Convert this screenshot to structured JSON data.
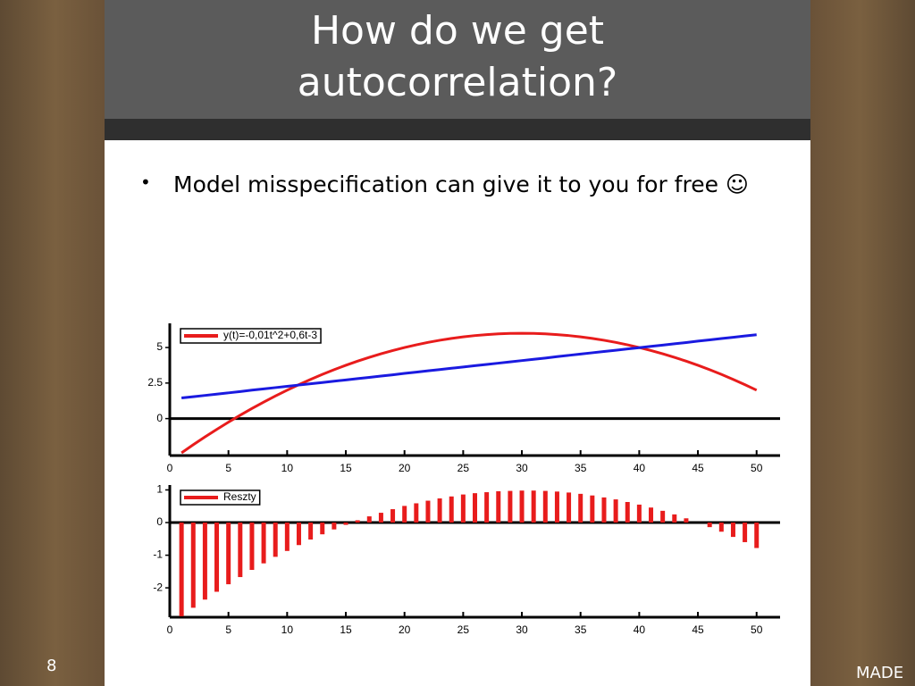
{
  "slide": {
    "title": "How do we get autocorrelation?",
    "bullet": "Model misspecification can give it to you for free ☺",
    "page_number": "8",
    "footer": "MADE"
  },
  "chart_data": [
    {
      "type": "line",
      "x": [
        1,
        2,
        3,
        4,
        5,
        6,
        7,
        8,
        9,
        10,
        11,
        12,
        13,
        14,
        15,
        16,
        17,
        18,
        19,
        20,
        21,
        22,
        23,
        24,
        25,
        26,
        27,
        28,
        29,
        30,
        31,
        32,
        33,
        34,
        35,
        36,
        37,
        38,
        39,
        40,
        41,
        42,
        43,
        44,
        45,
        46,
        47,
        48,
        49,
        50
      ],
      "series": [
        {
          "name": "y(t)=-0,01t^2+0,6t-3",
          "color": "#e81c1c",
          "values": [
            -2.41,
            -1.84,
            -1.29,
            -0.76,
            -0.25,
            0.24,
            0.71,
            1.16,
            1.59,
            2.0,
            2.39,
            2.76,
            3.11,
            3.44,
            3.75,
            4.04,
            4.31,
            4.56,
            4.79,
            5.0,
            5.19,
            5.36,
            5.51,
            5.64,
            5.75,
            5.84,
            5.91,
            5.96,
            5.99,
            6.0,
            5.99,
            5.96,
            5.91,
            5.84,
            5.75,
            5.64,
            5.51,
            5.36,
            5.19,
            5.0,
            4.79,
            4.56,
            4.31,
            4.04,
            3.75,
            3.44,
            3.11,
            2.76,
            2.39,
            2.0
          ]
        },
        {
          "color": "#1a1ae0",
          "values": [
            1.45,
            1.54,
            1.63,
            1.72,
            1.81,
            1.9,
            2.0,
            2.09,
            2.18,
            2.27,
            2.36,
            2.45,
            2.54,
            2.63,
            2.72,
            2.81,
            2.9,
            2.99,
            3.08,
            3.18,
            3.27,
            3.36,
            3.45,
            3.54,
            3.63,
            3.72,
            3.81,
            3.9,
            3.99,
            4.08,
            4.17,
            4.26,
            4.36,
            4.45,
            4.54,
            4.63,
            4.72,
            4.81,
            4.9,
            4.99,
            5.08,
            5.17,
            5.26,
            5.35,
            5.45,
            5.54,
            5.63,
            5.72,
            5.81,
            5.9
          ]
        }
      ],
      "xlim": [
        0,
        52
      ],
      "xticks": [
        0,
        5,
        10,
        15,
        20,
        25,
        30,
        35,
        40,
        45,
        50
      ],
      "ylim": [
        -2.6,
        6.7
      ],
      "yticks": [
        0,
        2.5,
        5
      ],
      "grid": false
    },
    {
      "type": "bar",
      "x": [
        1,
        2,
        3,
        4,
        5,
        6,
        7,
        8,
        9,
        10,
        11,
        12,
        13,
        14,
        15,
        16,
        17,
        18,
        19,
        20,
        21,
        22,
        23,
        24,
        25,
        26,
        27,
        28,
        29,
        30,
        31,
        32,
        33,
        34,
        35,
        36,
        37,
        38,
        39,
        40,
        41,
        42,
        43,
        44,
        45,
        46,
        47,
        48,
        49,
        50
      ],
      "series": [
        {
          "name": "Reszty",
          "color": "#e81c1c",
          "values": [
            -2.87,
            -2.61,
            -2.36,
            -2.12,
            -1.89,
            -1.67,
            -1.45,
            -1.25,
            -1.05,
            -0.87,
            -0.69,
            -0.52,
            -0.36,
            -0.21,
            -0.07,
            0.07,
            0.19,
            0.3,
            0.41,
            0.51,
            0.59,
            0.67,
            0.74,
            0.8,
            0.86,
            0.9,
            0.93,
            0.96,
            0.97,
            0.98,
            0.98,
            0.97,
            0.95,
            0.92,
            0.88,
            0.83,
            0.77,
            0.71,
            0.63,
            0.55,
            0.46,
            0.36,
            0.25,
            0.13,
            0,
            -0.14,
            -0.28,
            -0.44,
            -0.6,
            -0.78
          ]
        }
      ],
      "xlim": [
        0,
        52
      ],
      "xticks": [
        0,
        5,
        10,
        15,
        20,
        25,
        30,
        35,
        40,
        45,
        50
      ],
      "ylim": [
        -2.9,
        1.15
      ],
      "yticks": [
        -2,
        -1,
        0,
        1
      ],
      "grid": false
    }
  ]
}
